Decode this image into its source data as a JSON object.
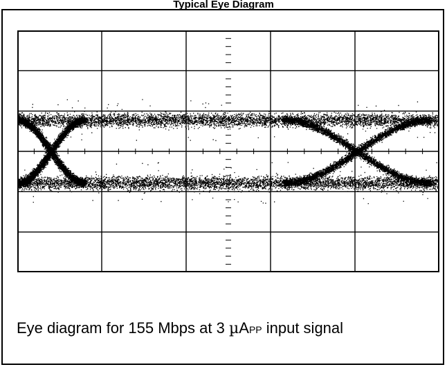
{
  "header": {
    "title": "Typical Eye Diagram"
  },
  "caption": {
    "prefix": "Eye diagram for 155 Mbps at 3 ",
    "unit_mu": "µ",
    "unit_a": "A",
    "unit_sub": "PP",
    "suffix": " input signal"
  },
  "chart_data": {
    "type": "scatter",
    "description": "oscilloscope eye diagram",
    "title": "Typical Eye Diagram",
    "xlabel": "",
    "ylabel": "",
    "grid": {
      "x_divisions": 5,
      "y_divisions": 6,
      "minor_ticks_per_division": 5
    },
    "levels": {
      "high": 0.78,
      "low": -0.78
    },
    "transitions": [
      {
        "from": "high",
        "to": "low",
        "start": 0.0,
        "end": 0.8,
        "crossing": 0.4
      },
      {
        "from": "low",
        "to": "high",
        "start": 0.0,
        "end": 0.8,
        "crossing": 0.4
      },
      {
        "from": "high",
        "to": "low",
        "start": 3.15,
        "end": 4.9,
        "crossing": 4.0
      },
      {
        "from": "low",
        "to": "high",
        "start": 3.15,
        "end": 4.9,
        "crossing": 4.0
      }
    ],
    "colors": {
      "trace": "#000000",
      "background": "#ffffff",
      "grid": "#000000"
    }
  }
}
